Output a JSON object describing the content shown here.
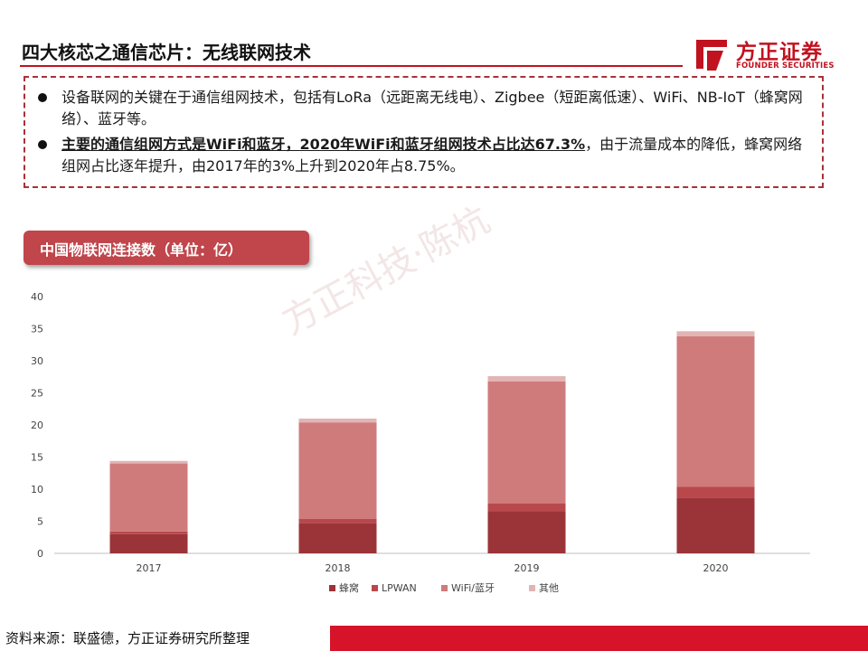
{
  "header": {
    "title": "四大核芯之通信芯片：无线联网技术",
    "logo_name": "方正证券",
    "logo_sub": "FOUNDER SECURITIES"
  },
  "bullets": [
    {
      "text": "设备联网的关键在于通信组网技术，包括有LoRa（远距离无线电）、Zigbee（短距离低速）、WiFi、NB-IoT（蜂窝网络）、蓝牙等。"
    },
    {
      "strong": "主要的通信组网方式是WiFi和蓝牙，2020年WiFi和蓝牙组网技术占比达67.3%",
      "rest": "，由于流量成本的降低，蜂窝网络组网占比逐年提升，由2017年的3%上升到2020年占8.75%。"
    }
  ],
  "chart_header": "中国物联网连接数（单位：亿）",
  "watermark": "方正科技·陈杭",
  "footer": "资料来源：联盛德，方正证券研究所整理",
  "colors": {
    "accent": "#c1121f",
    "cellular": "#9b3438",
    "lpwan": "#b8484c",
    "wifi_bt": "#cf7b7c",
    "other": "#e2b4b4"
  },
  "chart_data": {
    "type": "bar",
    "stacked": true,
    "categories": [
      "2017",
      "2018",
      "2019",
      "2020"
    ],
    "series": [
      {
        "name": "蜂窝",
        "values": [
          3.0,
          4.7,
          6.6,
          8.7
        ]
      },
      {
        "name": "LPWAN",
        "values": [
          0.4,
          0.7,
          1.2,
          1.7
        ]
      },
      {
        "name": "WiFi/蓝牙",
        "values": [
          10.6,
          15.0,
          19.0,
          23.4
        ]
      },
      {
        "name": "其他",
        "values": [
          0.4,
          0.6,
          0.8,
          0.8
        ]
      }
    ],
    "ylim": [
      0,
      40
    ],
    "yticks": [
      0,
      5,
      10,
      15,
      20,
      25,
      30,
      35,
      40
    ],
    "legend_position": "bottom",
    "grid": false
  }
}
